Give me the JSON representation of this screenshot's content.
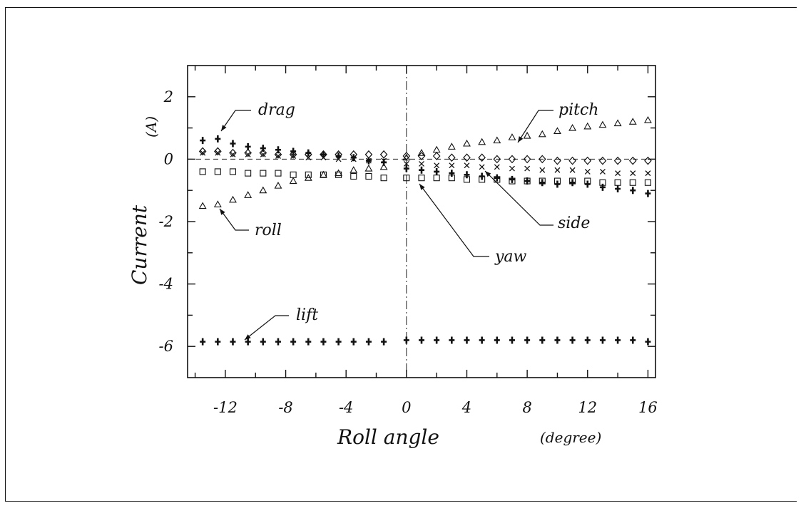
{
  "chart_data": {
    "type": "scatter",
    "xlabel": "Roll angle",
    "xunit": "(degree)",
    "ylabel": "Current",
    "yunit": "(A)",
    "xlim": [
      -14.5,
      16.5
    ],
    "ylim": [
      -7,
      3
    ],
    "xticks": [
      -12,
      -8,
      -4,
      0,
      4,
      8,
      12,
      16
    ],
    "yticks": [
      2,
      0,
      -2,
      -4,
      -6
    ],
    "xtick_labels": [
      "-12",
      "-8",
      "-4",
      "0",
      "4",
      "8",
      "12",
      "16"
    ],
    "ytick_labels": [
      "2",
      "0",
      "-2",
      "-4",
      "-6"
    ],
    "reference_lines": {
      "x": 0,
      "y": 0
    },
    "annotations": {
      "drag": "drag",
      "pitch": "pitch",
      "roll": "roll",
      "side": "side",
      "yaw": "yaw",
      "lift": "lift"
    },
    "x": [
      -13.5,
      -12.5,
      -11.5,
      -10.5,
      -9.5,
      -8.5,
      -7.5,
      -6.5,
      -5.5,
      -4.5,
      -3.5,
      -2.5,
      -1.5,
      0,
      1,
      2,
      3,
      4,
      5,
      6,
      7,
      8,
      9,
      10,
      11,
      12,
      13,
      14,
      15,
      16
    ],
    "series": [
      {
        "marker": "plus-bold",
        "values": [
          0.6,
          0.65,
          0.5,
          0.4,
          0.35,
          0.3,
          0.25,
          0.2,
          0.15,
          0.1,
          0.05,
          -0.05,
          -0.1,
          -0.3,
          -0.35,
          -0.4,
          -0.45,
          -0.5,
          -0.55,
          -0.6,
          -0.65,
          -0.7,
          -0.75,
          -0.8,
          -0.75,
          -0.8,
          -0.9,
          -0.95,
          -1.0,
          -1.1
        ]
      },
      {
        "marker": "diamond",
        "values": [
          0.25,
          0.25,
          0.2,
          0.2,
          0.2,
          0.15,
          0.15,
          0.15,
          0.15,
          0.15,
          0.15,
          0.15,
          0.15,
          0.1,
          0.1,
          0.1,
          0.05,
          0.05,
          0.05,
          0.0,
          0.0,
          0.0,
          0.0,
          -0.05,
          -0.05,
          -0.05,
          -0.05,
          -0.05,
          -0.05,
          -0.05
        ]
      },
      {
        "marker": "cross",
        "values": [
          0.2,
          0.2,
          0.15,
          0.15,
          0.15,
          0.1,
          0.1,
          0.05,
          0.05,
          0.0,
          0.0,
          -0.05,
          -0.05,
          -0.15,
          -0.15,
          -0.2,
          -0.2,
          -0.2,
          -0.25,
          -0.25,
          -0.3,
          -0.3,
          -0.35,
          -0.35,
          -0.35,
          -0.4,
          -0.4,
          -0.45,
          -0.45,
          -0.45
        ]
      },
      {
        "marker": "triangle",
        "values": [
          -1.5,
          -1.45,
          -1.3,
          -1.15,
          -1.0,
          -0.85,
          -0.7,
          -0.6,
          -0.5,
          -0.45,
          -0.35,
          -0.3,
          -0.25,
          0.05,
          0.2,
          0.3,
          0.4,
          0.5,
          0.55,
          0.6,
          0.7,
          0.75,
          0.8,
          0.9,
          1.0,
          1.05,
          1.1,
          1.15,
          1.2,
          1.25
        ]
      },
      {
        "marker": "square",
        "values": [
          -0.4,
          -0.4,
          -0.4,
          -0.45,
          -0.45,
          -0.45,
          -0.5,
          -0.5,
          -0.5,
          -0.5,
          -0.55,
          -0.55,
          -0.6,
          -0.6,
          -0.6,
          -0.6,
          -0.6,
          -0.65,
          -0.65,
          -0.65,
          -0.7,
          -0.7,
          -0.7,
          -0.7,
          -0.7,
          -0.7,
          -0.75,
          -0.75,
          -0.75,
          -0.75
        ]
      },
      {
        "marker": "plus-bold",
        "values": [
          -5.85,
          -5.85,
          -5.85,
          -5.85,
          -5.85,
          -5.85,
          -5.85,
          -5.85,
          -5.85,
          -5.85,
          -5.85,
          -5.85,
          -5.85,
          -5.8,
          -5.8,
          -5.8,
          -5.8,
          -5.8,
          -5.8,
          -5.8,
          -5.8,
          -5.8,
          -5.8,
          -5.8,
          -5.8,
          -5.8,
          -5.8,
          -5.8,
          -5.8,
          -5.85
        ]
      }
    ]
  }
}
